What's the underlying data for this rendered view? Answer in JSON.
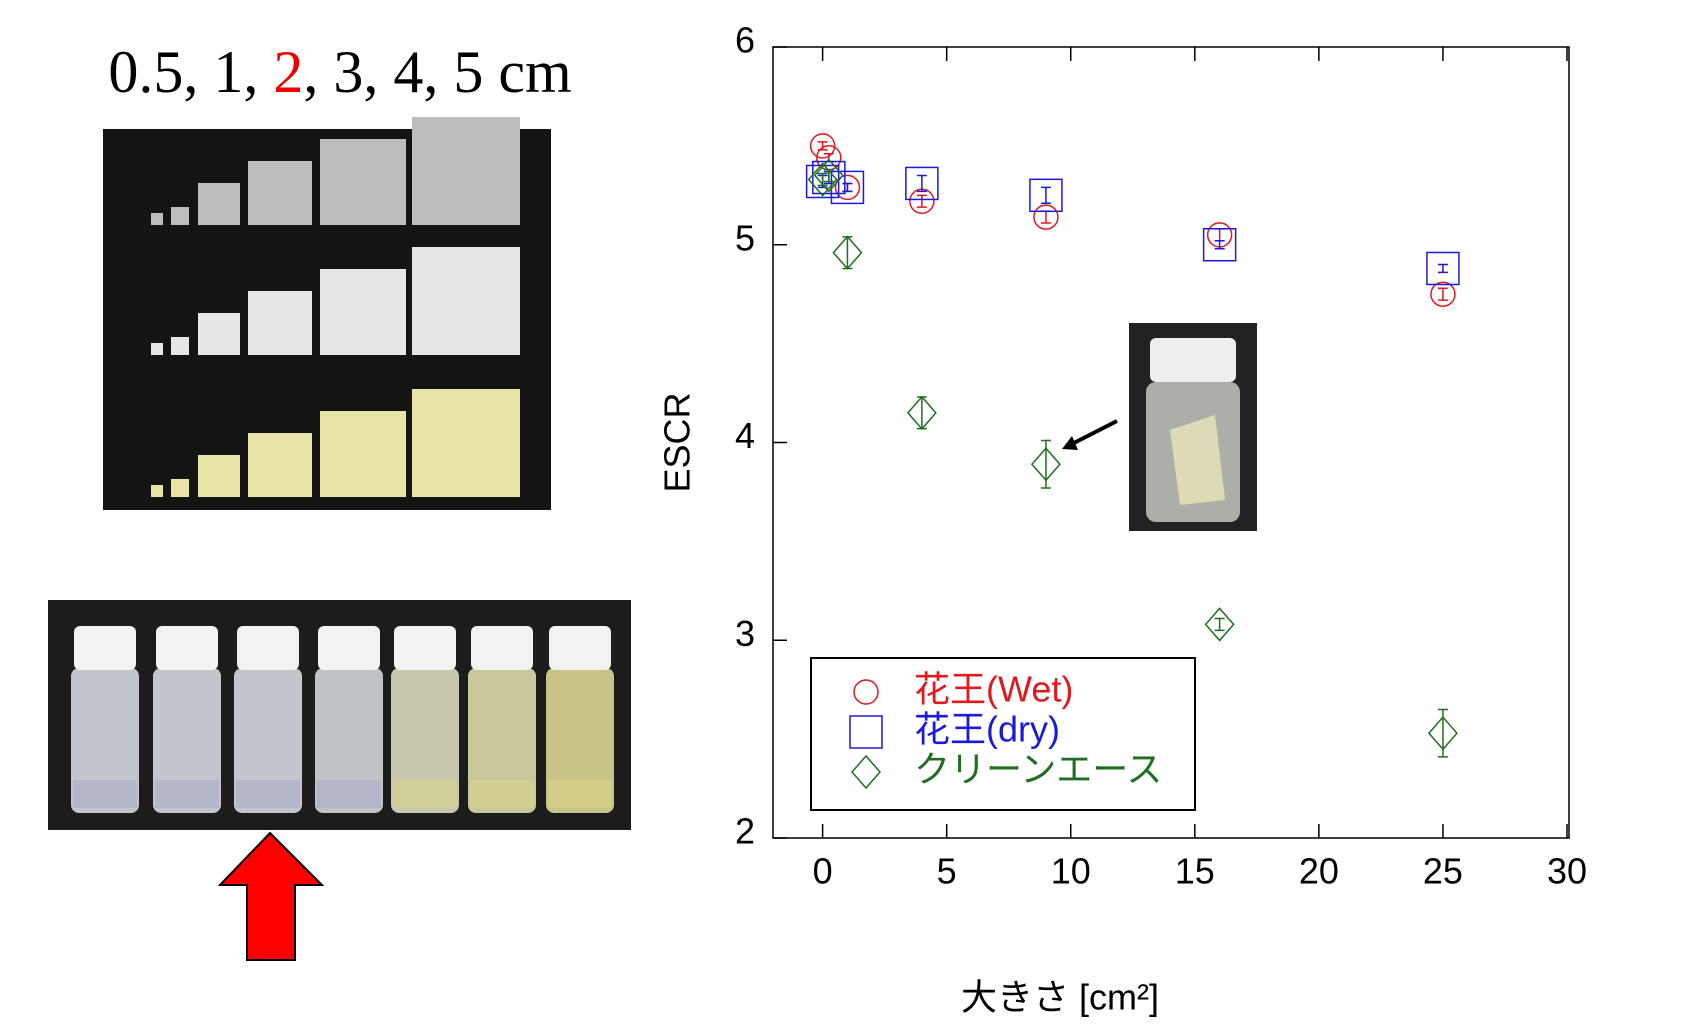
{
  "caption": {
    "before": "0.5, 1, ",
    "highlight": "2",
    "after": ", 3, 4, 5 cm"
  },
  "chart_data": {
    "type": "scatter",
    "x_label": "大きさ [cm²]",
    "y_label": "ESCR",
    "xlim": [
      -2,
      30
    ],
    "ylim": [
      2,
      6
    ],
    "xticks": [
      0,
      5,
      10,
      15,
      20,
      25,
      30
    ],
    "yticks": [
      2,
      3,
      4,
      5,
      6
    ],
    "legend": "bottom-left",
    "series": [
      {
        "name": "花王(Wet)",
        "color": "#e0191e",
        "marker": "circle",
        "x": [
          0,
          0.25,
          1,
          4,
          9,
          16,
          25
        ],
        "values": [
          5.5,
          5.44,
          5.29,
          5.22,
          5.14,
          5.05,
          4.75
        ],
        "errors": [
          0.02,
          0.02,
          0.02,
          0.03,
          0.03,
          0.03,
          0.03
        ]
      },
      {
        "name": "花王(dry)",
        "color": "#1a1adc",
        "marker": "square",
        "x": [
          0,
          0.25,
          1,
          4,
          9,
          16,
          25
        ],
        "values": [
          5.32,
          5.34,
          5.29,
          5.31,
          5.25,
          5.0,
          4.88
        ],
        "errors": [
          0.03,
          0.03,
          0.02,
          0.04,
          0.04,
          0.02,
          0.02
        ]
      },
      {
        "name": "クリーンエース",
        "color": "#1f6e1f",
        "marker": "diamond",
        "x": [
          0,
          0.25,
          1,
          4,
          9,
          16,
          25
        ],
        "values": [
          5.33,
          5.35,
          4.96,
          4.15,
          3.89,
          3.08,
          2.53
        ],
        "errors": [
          0.03,
          0.03,
          0.08,
          0.08,
          0.12,
          0.03,
          0.12
        ]
      }
    ]
  }
}
